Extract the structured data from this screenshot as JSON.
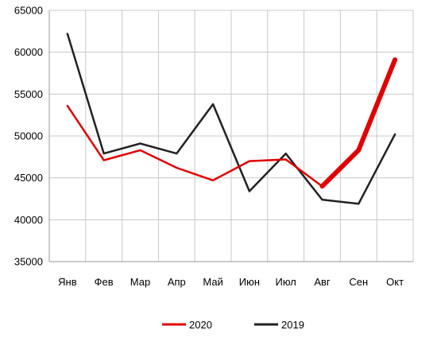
{
  "chart_data": {
    "type": "line",
    "categories": [
      "Янв",
      "Фев",
      "Мар",
      "Апр",
      "Май",
      "Июн",
      "Июл",
      "Авг",
      "Сен",
      "Окт"
    ],
    "ylim": [
      35000,
      65000
    ],
    "yticks": [
      35000,
      40000,
      45000,
      50000,
      55000,
      60000,
      65000
    ],
    "grid": true,
    "legend_position": "bottom",
    "series": [
      {
        "name": "2020",
        "color": "#e00000",
        "values": [
          53600,
          47100,
          48300,
          46200,
          44700,
          47000,
          47200,
          44000,
          48300,
          59100
        ],
        "bold_from_index": 7
      },
      {
        "name": "2019",
        "color": "#222222",
        "values": [
          62200,
          47900,
          49100,
          47900,
          53800,
          43400,
          47900,
          42400,
          41900,
          50200
        ]
      }
    ]
  }
}
